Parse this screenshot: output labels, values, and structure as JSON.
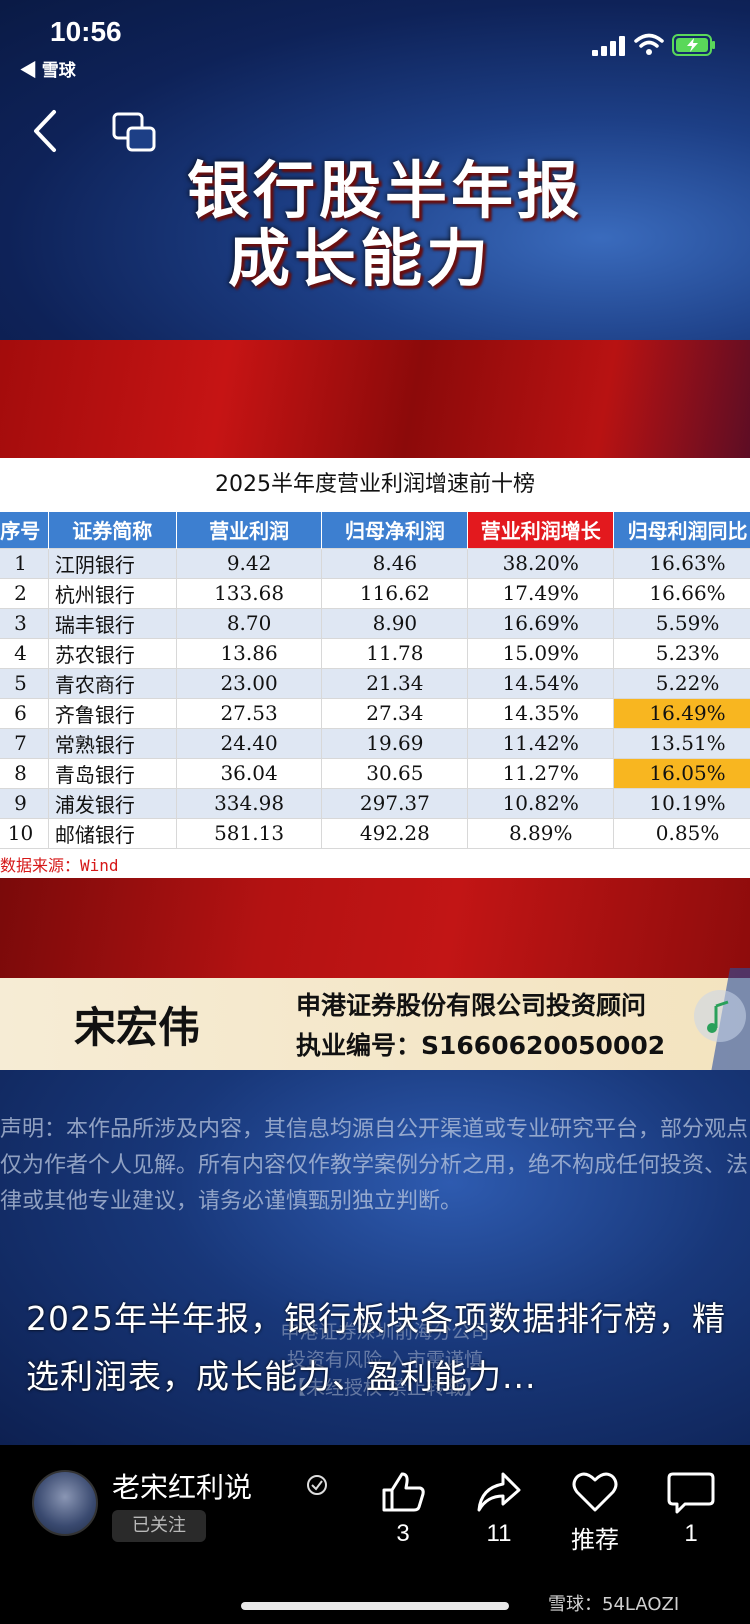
{
  "status_bar": {
    "time": "10:56",
    "back_app": "◀ 雪球"
  },
  "video": {
    "title_line1": "银行股半年报",
    "title_line2": "成长能力",
    "table_title": "2025半年度营业利润增速前十榜",
    "columns": [
      "序号",
      "证券简称",
      "营业利润",
      "归母净利润",
      "营业利润增长",
      "归母利润同比"
    ],
    "highlight_column": "营业利润增长",
    "rows": [
      {
        "rank": "1",
        "name": "江阴银行",
        "op_profit": "9.42",
        "net_profit": "8.46",
        "op_growth": "38.20%",
        "net_yoy": "16.63%",
        "hl": false
      },
      {
        "rank": "2",
        "name": "杭州银行",
        "op_profit": "133.68",
        "net_profit": "116.62",
        "op_growth": "17.49%",
        "net_yoy": "16.66%",
        "hl": false
      },
      {
        "rank": "3",
        "name": "瑞丰银行",
        "op_profit": "8.70",
        "net_profit": "8.90",
        "op_growth": "16.69%",
        "net_yoy": "5.59%",
        "hl": false
      },
      {
        "rank": "4",
        "name": "苏农银行",
        "op_profit": "13.86",
        "net_profit": "11.78",
        "op_growth": "15.09%",
        "net_yoy": "5.23%",
        "hl": false
      },
      {
        "rank": "5",
        "name": "青农商行",
        "op_profit": "23.00",
        "net_profit": "21.34",
        "op_growth": "14.54%",
        "net_yoy": "5.22%",
        "hl": false
      },
      {
        "rank": "6",
        "name": "齐鲁银行",
        "op_profit": "27.53",
        "net_profit": "27.34",
        "op_growth": "14.35%",
        "net_yoy": "16.49%",
        "hl": true
      },
      {
        "rank": "7",
        "name": "常熟银行",
        "op_profit": "24.40",
        "net_profit": "19.69",
        "op_growth": "11.42%",
        "net_yoy": "13.51%",
        "hl": false
      },
      {
        "rank": "8",
        "name": "青岛银行",
        "op_profit": "36.04",
        "net_profit": "30.65",
        "op_growth": "11.27%",
        "net_yoy": "16.05%",
        "hl": true
      },
      {
        "rank": "9",
        "name": "浦发银行",
        "op_profit": "334.98",
        "net_profit": "297.37",
        "op_growth": "10.82%",
        "net_yoy": "10.19%",
        "hl": false
      },
      {
        "rank": "10",
        "name": "邮储银行",
        "op_profit": "581.13",
        "net_profit": "492.28",
        "op_growth": "8.89%",
        "net_yoy": "0.85%",
        "hl": false
      }
    ],
    "source_note": "数据来源：Wind",
    "person_name": "宋宏伟",
    "company": "申港证券股份有限公司投资顾问",
    "license": "执业编号：S1660620050002",
    "disclaimer": "声明：本作品所涉及内容，其信息均源自公开渠道或专业研究平台，部分观点仅为作者个人见解。所有内容仅作教学案例分析之用，绝不构成任何投资、法律或其他专业建议，请务必谨慎甄别独立判断。",
    "watermark_lines": [
      "申港证券深圳前海分公司",
      "投资有风险 入市需谨慎",
      "【未经授权 禁止转载】"
    ],
    "caption": "2025年半年报，银行板块各项数据排行榜，精选利润表，成长能力、盈利能力..."
  },
  "author": {
    "name": "老宋红利说",
    "follow_status": "已关注"
  },
  "actions": {
    "like_count": "3",
    "share_count": "11",
    "recommend_label": "推荐",
    "comment_count": "1"
  },
  "brand_mark": "雪球：54LAOZI",
  "colors": {
    "header_blue": "#3d7fd0",
    "header_red": "#e3191e",
    "cell_orange": "#f8b620",
    "band_red": "#c61414"
  }
}
